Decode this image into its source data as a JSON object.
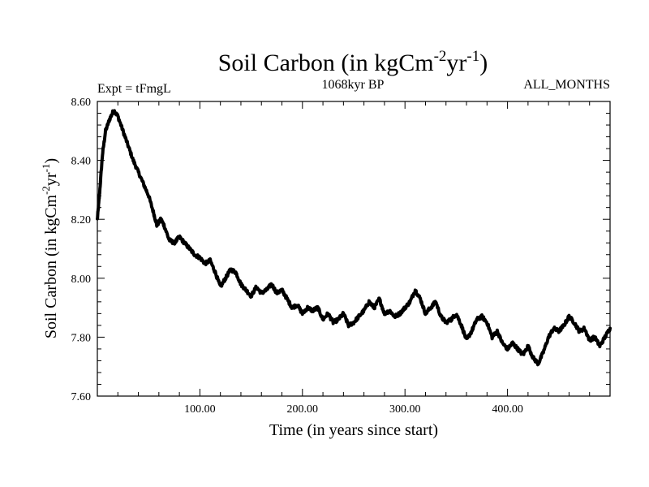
{
  "chart_data": {
    "type": "line",
    "title": {
      "main": "Soil Carbon (in kgCm",
      "sup1": "-2",
      "mid": "yr",
      "sup2": "-1",
      "end": ")"
    },
    "subtitle_left": "Expt = tFmgL",
    "subtitle_center": "1068kyr BP",
    "subtitle_right": "ALL_MONTHS",
    "xlabel": "Time (in years since start)",
    "ylabel": {
      "main": "Soil Carbon (in kgCm",
      "sup1": "-2",
      "mid": "yr",
      "sup2": "-1",
      "end": ")"
    },
    "xlim": [
      0,
      500
    ],
    "ylim": [
      7.6,
      8.6
    ],
    "xticks": [
      100,
      200,
      300,
      400
    ],
    "xtick_labels": [
      "100.00",
      "200.00",
      "300.00",
      "400.00"
    ],
    "yticks": [
      7.6,
      7.8,
      8.0,
      8.2,
      8.4,
      8.6
    ],
    "ytick_labels": [
      "7.60",
      "7.80",
      "8.00",
      "8.20",
      "8.40",
      "8.60"
    ],
    "series": [
      {
        "name": "Soil Carbon",
        "color": "#000000",
        "x": [
          0,
          2,
          5,
          8,
          12,
          16,
          20,
          25,
          30,
          35,
          40,
          45,
          50,
          55,
          58,
          62,
          65,
          70,
          75,
          80,
          85,
          90,
          95,
          100,
          105,
          110,
          115,
          120,
          125,
          130,
          135,
          140,
          145,
          150,
          155,
          160,
          165,
          170,
          175,
          180,
          185,
          190,
          195,
          200,
          205,
          210,
          215,
          220,
          225,
          230,
          235,
          240,
          245,
          250,
          255,
          260,
          265,
          270,
          275,
          280,
          285,
          290,
          295,
          300,
          305,
          310,
          315,
          320,
          325,
          330,
          335,
          340,
          345,
          350,
          355,
          360,
          365,
          370,
          375,
          380,
          385,
          390,
          395,
          400,
          405,
          410,
          415,
          420,
          425,
          430,
          435,
          440,
          445,
          450,
          455,
          460,
          465,
          470,
          475,
          480,
          485,
          490,
          495,
          500
        ],
        "y": [
          8.2,
          8.28,
          8.42,
          8.5,
          8.54,
          8.57,
          8.55,
          8.5,
          8.45,
          8.4,
          8.36,
          8.32,
          8.28,
          8.22,
          8.18,
          8.2,
          8.18,
          8.13,
          8.12,
          8.14,
          8.12,
          8.1,
          8.08,
          8.07,
          8.05,
          8.06,
          8.02,
          7.97,
          8.0,
          8.03,
          8.02,
          7.98,
          7.96,
          7.94,
          7.97,
          7.95,
          7.96,
          7.98,
          7.95,
          7.96,
          7.93,
          7.9,
          7.91,
          7.88,
          7.9,
          7.89,
          7.9,
          7.86,
          7.88,
          7.85,
          7.86,
          7.88,
          7.84,
          7.85,
          7.87,
          7.89,
          7.92,
          7.9,
          7.93,
          7.88,
          7.89,
          7.87,
          7.88,
          7.9,
          7.92,
          7.96,
          7.93,
          7.88,
          7.9,
          7.92,
          7.87,
          7.85,
          7.86,
          7.88,
          7.84,
          7.79,
          7.82,
          7.86,
          7.87,
          7.85,
          7.8,
          7.82,
          7.78,
          7.76,
          7.78,
          7.76,
          7.74,
          7.77,
          7.73,
          7.71,
          7.75,
          7.8,
          7.83,
          7.82,
          7.84,
          7.87,
          7.85,
          7.82,
          7.83,
          7.79,
          7.8,
          7.77,
          7.8,
          7.83
        ]
      }
    ]
  }
}
